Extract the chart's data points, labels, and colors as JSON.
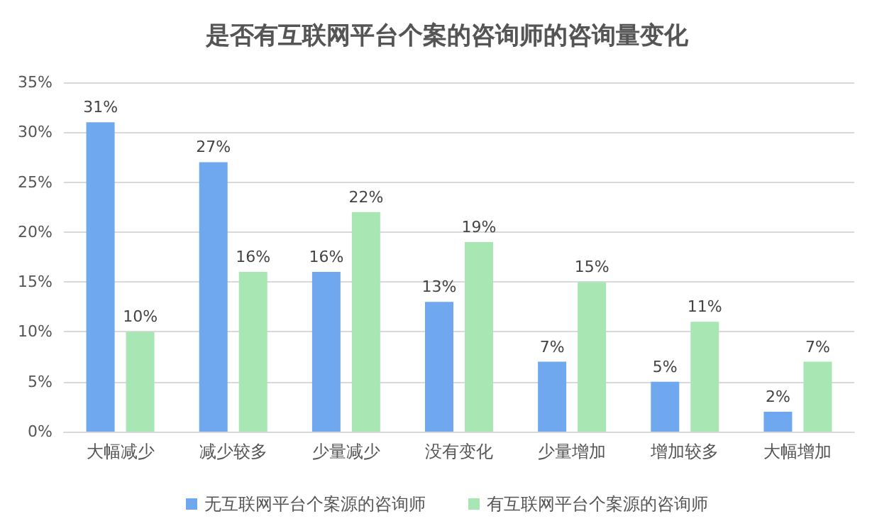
{
  "chart_data": {
    "type": "bar",
    "title": "是否有互联网平台个案的咨询师的咨询量变化",
    "categories": [
      "大幅减少",
      "减少较多",
      "少量减少",
      "没有变化",
      "少量增加",
      "增加较多",
      "大幅增加"
    ],
    "series": [
      {
        "name": "无互联网平台个案源的咨询师",
        "color": "#6fa8ee",
        "values": [
          31,
          27,
          16,
          13,
          7,
          5,
          2
        ],
        "value_labels": [
          "31%",
          "27%",
          "16%",
          "13%",
          "7%",
          "5%",
          "2%"
        ]
      },
      {
        "name": "有互联网平台个案源的咨询师",
        "color": "#a8e6b4",
        "values": [
          10,
          16,
          22,
          19,
          15,
          11,
          7
        ],
        "value_labels": [
          "10%",
          "16%",
          "22%",
          "19%",
          "15%",
          "11%",
          "7%"
        ]
      }
    ],
    "ylim": [
      0,
      35
    ],
    "yticks": [
      {
        "value": 0,
        "label": "0%"
      },
      {
        "value": 5,
        "label": "5%"
      },
      {
        "value": 10,
        "label": "10%"
      },
      {
        "value": 15,
        "label": "15%"
      },
      {
        "value": 20,
        "label": "20%"
      },
      {
        "value": 25,
        "label": "25%"
      },
      {
        "value": 30,
        "label": "30%"
      },
      {
        "value": 35,
        "label": "35%"
      }
    ],
    "grid": "y",
    "legend": "bottom"
  }
}
